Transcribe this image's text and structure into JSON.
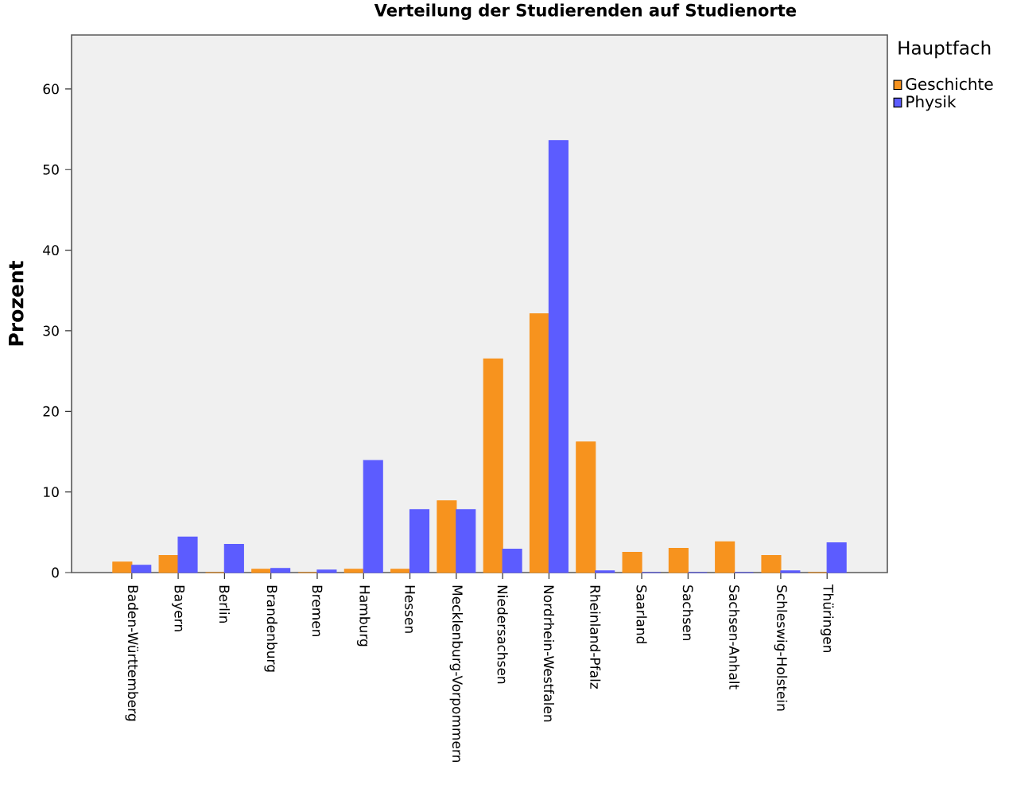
{
  "chart_data": {
    "type": "bar",
    "title": "Verteilung der Studierenden auf Studienorte",
    "ylabel": "Prozent",
    "legend_title": "Hauptfach",
    "categories": [
      "Baden-Württemberg",
      "Bayern",
      "Berlin",
      "Brandenburg",
      "Bremen",
      "Hamburg",
      "Hessen",
      "Mecklenburg-Vorpommern",
      "Niedersachsen",
      "Nordrhein-Westfalen",
      "Rheinland-Pfalz",
      "Saarland",
      "Sachsen",
      "Sachsen-Anhalt",
      "Schleswig-Holstein",
      "Thüringen"
    ],
    "series": [
      {
        "name": "Geschichte",
        "color": "#f7931e",
        "values": [
          1.3,
          2.1,
          0,
          0.4,
          0,
          0.4,
          0.4,
          8.9,
          26.5,
          32.1,
          16.2,
          2.5,
          3.0,
          3.8,
          2.1,
          0
        ]
      },
      {
        "name": "Physik",
        "color": "#5c5cff",
        "values": [
          0.9,
          4.4,
          3.5,
          0.5,
          0.3,
          13.9,
          7.8,
          7.8,
          2.9,
          53.6,
          0.2,
          0,
          0,
          0,
          0.2,
          3.7
        ]
      }
    ],
    "ylim": [
      0,
      66.7
    ],
    "yticks": [
      0,
      10,
      20,
      30,
      40,
      50,
      60
    ],
    "grid": false,
    "legend": "top right"
  }
}
